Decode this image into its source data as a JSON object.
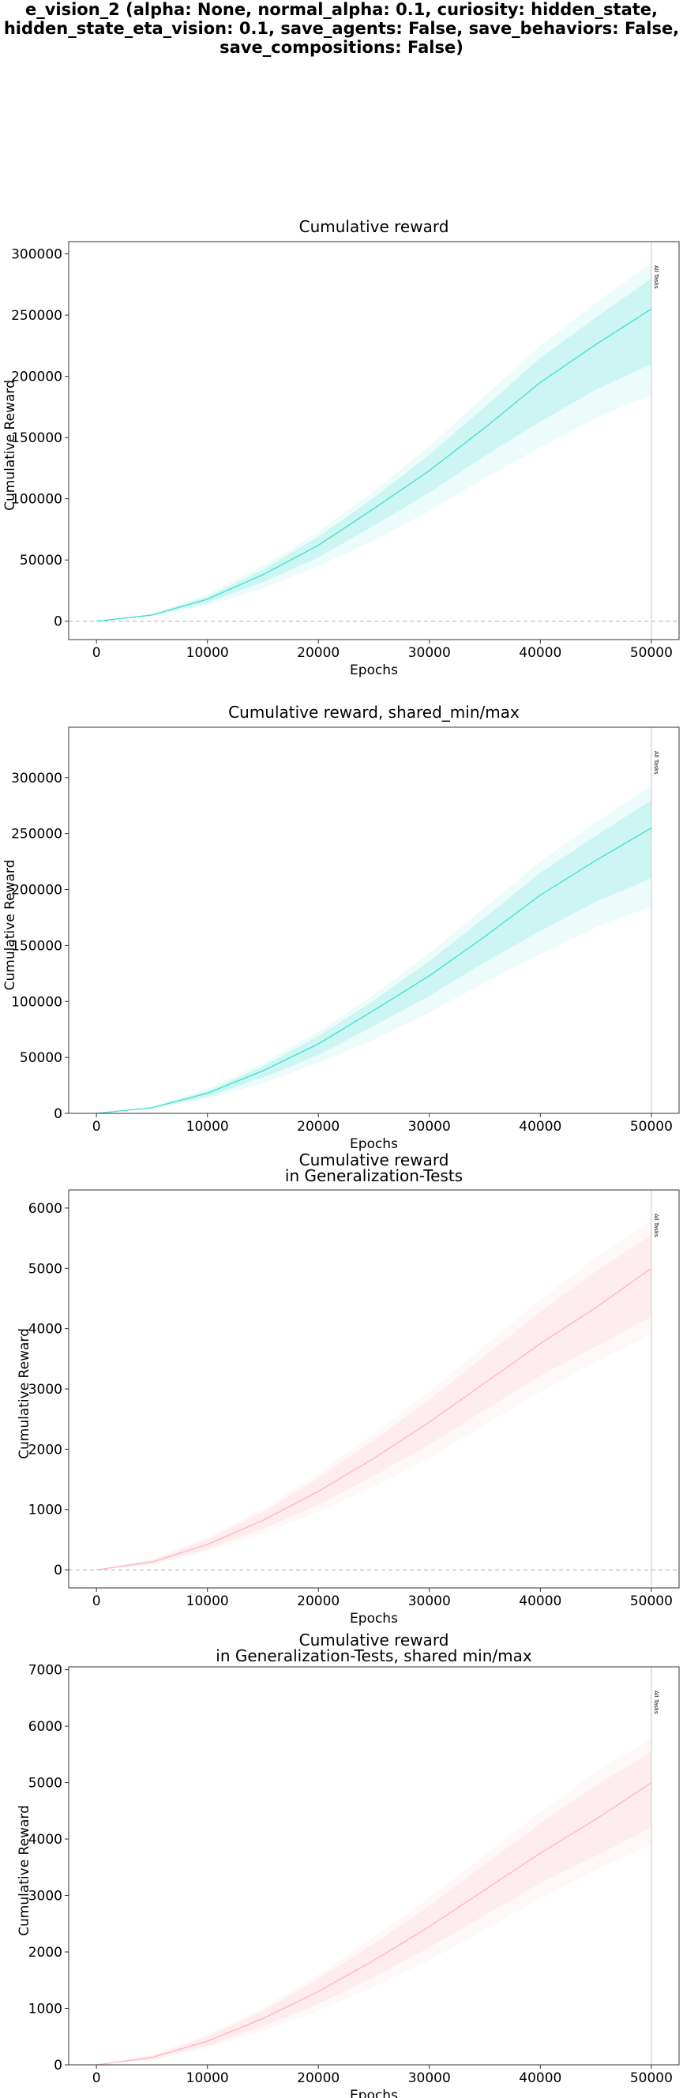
{
  "figure": {
    "suptitle_lines": [
      "e_vision_2 (alpha: None, normal_alpha: 0.1, curiosity: hidden_state,",
      "hidden_state_eta_vision: 0.1, save_agents: False, save_behaviors: False,",
      "save_compositions: False)"
    ]
  },
  "chart_data": [
    {
      "type": "line",
      "title_lines": [
        "Cumulative reward"
      ],
      "xlabel": "Epochs",
      "ylabel": "Cumulative Reward",
      "xlim": [
        -2500,
        52500
      ],
      "ylim": [
        -15000,
        310000
      ],
      "xticks": [
        0,
        10000,
        20000,
        30000,
        40000,
        50000
      ],
      "yticks": [
        0,
        50000,
        100000,
        150000,
        200000,
        250000,
        300000
      ],
      "zero_line": true,
      "vline": {
        "x": 50000,
        "label": "All Tasks"
      },
      "series": [
        {
          "color": "#40e0d0",
          "x": [
            0,
            5000,
            10000,
            15000,
            20000,
            25000,
            30000,
            35000,
            40000,
            45000,
            50000
          ],
          "y": [
            0,
            5000,
            18000,
            38000,
            62000,
            92000,
            123000,
            158000,
            195000,
            226000,
            255000
          ],
          "band_inner": {
            "low": [
              0,
              4500,
              15000,
              32000,
              52000,
              78000,
              105000,
              135000,
              163000,
              189000,
              210000
            ],
            "high": [
              0,
              5500,
              20000,
              42000,
              69000,
              101000,
              136000,
              175000,
              215000,
              248000,
              280000
            ]
          },
          "band_outer": {
            "low": [
              0,
              4000,
              13000,
              27000,
              45000,
              66000,
              90000,
              117000,
              142000,
              166000,
              185000
            ],
            "high": [
              0,
              6000,
              22000,
              45000,
              73000,
              106000,
              143000,
              184000,
              225000,
              260000,
              293000
            ]
          }
        }
      ]
    },
    {
      "type": "line",
      "title_lines": [
        "Cumulative reward, shared_min/max"
      ],
      "xlabel": "Epochs",
      "ylabel": "Cumulative Reward",
      "xlim": [
        -2500,
        52500
      ],
      "ylim": [
        0,
        345000
      ],
      "xticks": [
        0,
        10000,
        20000,
        30000,
        40000,
        50000
      ],
      "yticks": [
        0,
        50000,
        100000,
        150000,
        200000,
        250000,
        300000
      ],
      "zero_line": false,
      "vline": {
        "x": 50000,
        "label": "All Tasks"
      },
      "series": [
        {
          "color": "#40e0d0",
          "x": [
            0,
            5000,
            10000,
            15000,
            20000,
            25000,
            30000,
            35000,
            40000,
            45000,
            50000
          ],
          "y": [
            0,
            5000,
            18000,
            38000,
            62000,
            92000,
            123000,
            158000,
            195000,
            226000,
            255000
          ],
          "band_inner": {
            "low": [
              0,
              4500,
              15000,
              32000,
              52000,
              78000,
              105000,
              135000,
              163000,
              189000,
              210000
            ],
            "high": [
              0,
              5500,
              20000,
              42000,
              69000,
              101000,
              136000,
              175000,
              215000,
              248000,
              280000
            ]
          },
          "band_outer": {
            "low": [
              0,
              4000,
              13000,
              27000,
              45000,
              66000,
              90000,
              117000,
              142000,
              166000,
              185000
            ],
            "high": [
              0,
              6000,
              22000,
              45000,
              73000,
              106000,
              143000,
              184000,
              225000,
              260000,
              293000
            ]
          }
        }
      ]
    },
    {
      "type": "line",
      "title_lines": [
        "Cumulative reward",
        "in Generalization-Tests"
      ],
      "xlabel": "Epochs",
      "ylabel": "Cumulative Reward",
      "xlim": [
        -2500,
        52500
      ],
      "ylim": [
        -300,
        6300
      ],
      "xticks": [
        0,
        10000,
        20000,
        30000,
        40000,
        50000
      ],
      "yticks": [
        0,
        1000,
        2000,
        3000,
        4000,
        5000,
        6000
      ],
      "zero_line": true,
      "vline": {
        "x": 50000,
        "label": "All Tasks"
      },
      "series": [
        {
          "color": "#ffb6c1",
          "x": [
            0,
            5000,
            10000,
            15000,
            20000,
            25000,
            30000,
            35000,
            40000,
            45000,
            50000
          ],
          "y": [
            0,
            130,
            420,
            820,
            1300,
            1850,
            2450,
            3100,
            3750,
            4350,
            5000
          ],
          "band_inner": {
            "low": [
              0,
              100,
              340,
              680,
              1080,
              1560,
              2080,
              2650,
              3220,
              3700,
              4200
            ],
            "high": [
              0,
              160,
              500,
              960,
              1520,
              2150,
              2820,
              3550,
              4280,
              4950,
              5550
            ]
          },
          "band_outer": {
            "low": [
              0,
              80,
              300,
              600,
              960,
              1380,
              1850,
              2400,
              2950,
              3450,
              3900
            ],
            "high": [
              0,
              180,
              540,
              1020,
              1600,
              2260,
              2960,
              3720,
              4480,
              5180,
              5800
            ]
          }
        }
      ]
    },
    {
      "type": "line",
      "title_lines": [
        "Cumulative reward",
        "in Generalization-Tests, shared min/max"
      ],
      "xlabel": "Epochs",
      "ylabel": "Cumulative Reward",
      "xlim": [
        -2500,
        52500
      ],
      "ylim": [
        0,
        7050
      ],
      "xticks": [
        0,
        10000,
        20000,
        30000,
        40000,
        50000
      ],
      "yticks": [
        0,
        1000,
        2000,
        3000,
        4000,
        5000,
        6000,
        7000
      ],
      "zero_line": false,
      "vline": {
        "x": 50000,
        "label": "All Tasks"
      },
      "series": [
        {
          "color": "#ffb6c1",
          "x": [
            0,
            5000,
            10000,
            15000,
            20000,
            25000,
            30000,
            35000,
            40000,
            45000,
            50000
          ],
          "y": [
            0,
            130,
            420,
            820,
            1300,
            1850,
            2450,
            3100,
            3750,
            4350,
            5000
          ],
          "band_inner": {
            "low": [
              0,
              100,
              340,
              680,
              1080,
              1560,
              2080,
              2650,
              3220,
              3700,
              4200
            ],
            "high": [
              0,
              160,
              500,
              960,
              1520,
              2150,
              2820,
              3550,
              4280,
              4950,
              5550
            ]
          },
          "band_outer": {
            "low": [
              0,
              80,
              300,
              600,
              960,
              1380,
              1850,
              2400,
              2950,
              3450,
              3900
            ],
            "high": [
              0,
              180,
              540,
              1020,
              1600,
              2260,
              2960,
              3720,
              4480,
              5180,
              5800
            ]
          }
        }
      ]
    }
  ]
}
